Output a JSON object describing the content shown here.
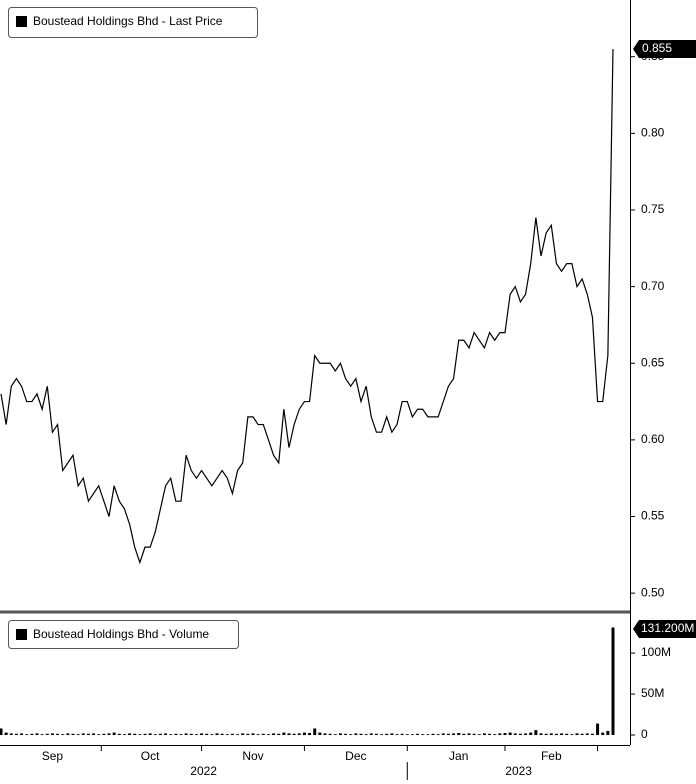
{
  "chart_data": [
    {
      "type": "line",
      "series": [
        {
          "name": "Boustead Holdings Bhd - Last Price",
          "color": "#000000",
          "values": [
            0.63,
            0.61,
            0.635,
            0.64,
            0.635,
            0.625,
            0.625,
            0.63,
            0.62,
            0.635,
            0.605,
            0.61,
            0.58,
            0.585,
            0.59,
            0.57,
            0.575,
            0.56,
            0.565,
            0.57,
            0.56,
            0.55,
            0.57,
            0.56,
            0.555,
            0.545,
            0.53,
            0.52,
            0.53,
            0.53,
            0.54,
            0.555,
            0.57,
            0.575,
            0.56,
            0.56,
            0.59,
            0.58,
            0.575,
            0.58,
            0.575,
            0.57,
            0.575,
            0.58,
            0.575,
            0.565,
            0.58,
            0.585,
            0.615,
            0.615,
            0.61,
            0.61,
            0.6,
            0.59,
            0.585,
            0.62,
            0.595,
            0.61,
            0.62,
            0.625,
            0.625,
            0.655,
            0.65,
            0.65,
            0.65,
            0.645,
            0.65,
            0.64,
            0.635,
            0.64,
            0.625,
            0.635,
            0.615,
            0.605,
            0.605,
            0.615,
            0.605,
            0.61,
            0.625,
            0.625,
            0.615,
            0.62,
            0.62,
            0.615,
            0.615,
            0.615,
            0.625,
            0.635,
            0.64,
            0.665,
            0.665,
            0.66,
            0.67,
            0.665,
            0.66,
            0.67,
            0.665,
            0.67,
            0.67,
            0.695,
            0.7,
            0.69,
            0.695,
            0.715,
            0.745,
            0.72,
            0.735,
            0.74,
            0.715,
            0.71,
            0.715,
            0.715,
            0.7,
            0.705,
            0.695,
            0.68,
            0.625,
            0.625,
            0.655,
            0.855
          ]
        }
      ],
      "ylim": [
        0.489,
        0.887
      ],
      "yticks": [
        {
          "value": 0.5,
          "label": "0.50"
        },
        0.55,
        {
          "value": 0.6,
          "label": "0.60"
        },
        0.65,
        {
          "value": 0.7,
          "label": "0.70"
        },
        0.75,
        {
          "value": 0.8,
          "label": "0.80"
        },
        0.85
      ]
    },
    {
      "type": "bar",
      "series": [
        {
          "name": "Boustead Holdings Bhd - Volume",
          "color": "#000000",
          "values": [
            8,
            3,
            2,
            1.5,
            2,
            1,
            1.5,
            2,
            1,
            1.5,
            2,
            1.5,
            1,
            2,
            1.5,
            1,
            2,
            1.5,
            2,
            1,
            1.5,
            2,
            3,
            1.5,
            1,
            2,
            1.5,
            1,
            1.5,
            2,
            1,
            1.5,
            2,
            1,
            1.5,
            1,
            2,
            1.5,
            1,
            2,
            1.5,
            1,
            2,
            1.5,
            1,
            1.5,
            1,
            2,
            1.5,
            2,
            1,
            1.5,
            1,
            2,
            1.5,
            3,
            2,
            1.5,
            2,
            3,
            2.5,
            8,
            3,
            2,
            1.5,
            1,
            2,
            1.5,
            1,
            2,
            1.5,
            1,
            2,
            1.5,
            1,
            1.5,
            2,
            1,
            1.5,
            1,
            1,
            1.5,
            1,
            1,
            1.5,
            1,
            2,
            1.5,
            2,
            2.5,
            1.5,
            2,
            1.5,
            1,
            2,
            1.5,
            1,
            2,
            2.5,
            3,
            2,
            1.5,
            2,
            3,
            6,
            2,
            1.5,
            2,
            1.5,
            2,
            1.5,
            1,
            2,
            1.5,
            2,
            1.5,
            14,
            3,
            5,
            131.2
          ],
          "last_label": "131.200M"
        }
      ],
      "ylim": [
        -8.5,
        144
      ],
      "yticks": [
        0,
        {
          "value": 50,
          "label": "50M"
        },
        {
          "value": 100,
          "label": "100M"
        }
      ],
      "categories": [
        null,
        null,
        null,
        null,
        null,
        null,
        null,
        null,
        null,
        null,
        "Sep",
        null,
        null,
        null,
        null,
        null,
        null,
        null,
        null,
        null,
        null,
        null,
        null,
        null,
        null,
        null,
        null,
        null,
        null,
        "Oct",
        null,
        null,
        null,
        null,
        null,
        null,
        null,
        null,
        null,
        null,
        null,
        null,
        null,
        null,
        null,
        null,
        null,
        null,
        null,
        "Nov",
        null,
        null,
        null,
        null,
        null,
        null,
        null,
        null,
        null,
        null,
        null,
        null,
        null,
        null,
        null,
        null,
        null,
        null,
        null,
        "Dec",
        null,
        null,
        null,
        null,
        null,
        null,
        null,
        null,
        null,
        null,
        null,
        null,
        null,
        null,
        null,
        null,
        null,
        null,
        null,
        "Jan",
        null,
        null,
        null,
        null,
        null,
        null,
        null,
        null,
        null,
        null,
        null,
        null,
        null,
        null,
        null,
        null,
        null,
        "Feb",
        null,
        null,
        null,
        null,
        null,
        null,
        null,
        null,
        null,
        null,
        null,
        null
      ],
      "years": [
        "2022",
        "2023"
      ]
    }
  ]
}
